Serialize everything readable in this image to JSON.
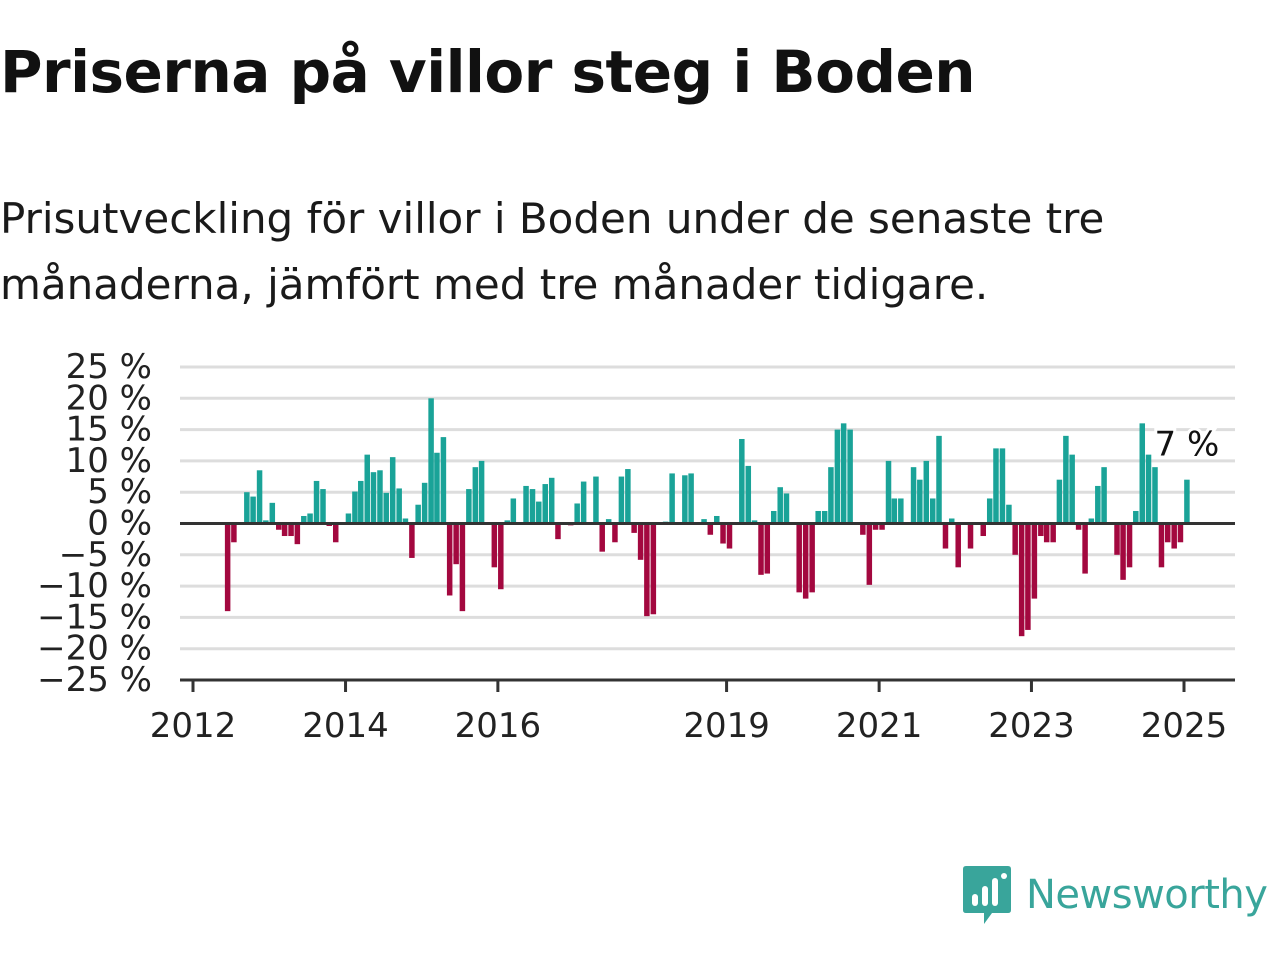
{
  "header": {
    "title": "Priserna på villor steg i Boden",
    "subtitle": "Prisutveckling för villor i Boden under de senaste tre månaderna, jämfört med tre månader tidigare."
  },
  "brand": {
    "name": "Newsworthy",
    "icon": "newsworthy-logo-icon",
    "color": "#39a59b"
  },
  "colors": {
    "positive": "#1aa398",
    "negative": "#a3083f",
    "grid": "#dddddd",
    "axis": "#333333"
  },
  "chart_data": {
    "type": "bar",
    "title": "",
    "xlabel": "",
    "ylabel": "",
    "ylim": [
      -25,
      25
    ],
    "y_ticks": [
      25,
      20,
      15,
      10,
      5,
      0,
      -5,
      -10,
      -15,
      -20,
      -25
    ],
    "y_tick_labels": [
      "25 %",
      "20 %",
      "15 %",
      "10 %",
      "5 %",
      "0 %",
      "−5 %",
      "−10 %",
      "−15 %",
      "−20 %",
      "−25 %"
    ],
    "x_range": [
      "2012-01",
      "2025-07"
    ],
    "x_ticks": [
      "2012",
      "2014",
      "2016",
      "2019",
      "2021",
      "2023",
      "2025"
    ],
    "grid": true,
    "series": [
      {
        "values": [
          [
            "2012-06",
            -14
          ],
          [
            "2012-07",
            -3
          ],
          [
            "2012-09",
            5
          ],
          [
            "2012-10",
            4.3
          ],
          [
            "2012-11",
            8.5
          ],
          [
            "2012-12",
            0.5
          ],
          [
            "2013-01",
            3.3
          ],
          [
            "2013-02",
            -1
          ],
          [
            "2013-03",
            -2
          ],
          [
            "2013-04",
            -2
          ],
          [
            "2013-05",
            -3.3
          ],
          [
            "2013-06",
            1.2
          ],
          [
            "2013-07",
            1.6
          ],
          [
            "2013-08",
            6.8
          ],
          [
            "2013-09",
            5.5
          ],
          [
            "2013-10",
            -0.4
          ],
          [
            "2013-11",
            -3
          ],
          [
            "2014-01",
            1.6
          ],
          [
            "2014-02",
            5.1
          ],
          [
            "2014-03",
            6.8
          ],
          [
            "2014-04",
            11
          ],
          [
            "2014-05",
            8.2
          ],
          [
            "2014-06",
            8.5
          ],
          [
            "2014-07",
            4.9
          ],
          [
            "2014-08",
            10.6
          ],
          [
            "2014-09",
            5.6
          ],
          [
            "2014-10",
            0.8
          ],
          [
            "2014-11",
            -5.5
          ],
          [
            "2014-12",
            3
          ],
          [
            "2015-01",
            6.5
          ],
          [
            "2015-02",
            20
          ],
          [
            "2015-03",
            11.3
          ],
          [
            "2015-04",
            13.8
          ],
          [
            "2015-05",
            -11.5
          ],
          [
            "2015-06",
            -6.5
          ],
          [
            "2015-07",
            -14
          ],
          [
            "2015-08",
            5.5
          ],
          [
            "2015-09",
            9
          ],
          [
            "2015-10",
            10
          ],
          [
            "2015-12",
            -7
          ],
          [
            "2016-01",
            -10.5
          ],
          [
            "2016-02",
            0.5
          ],
          [
            "2016-03",
            4
          ],
          [
            "2016-05",
            6
          ],
          [
            "2016-06",
            5.5
          ],
          [
            "2016-07",
            3.5
          ],
          [
            "2016-08",
            6.3
          ],
          [
            "2016-09",
            7.3
          ],
          [
            "2016-10",
            -2.5
          ],
          [
            "2016-12",
            -0.3
          ],
          [
            "2017-01",
            3.2
          ],
          [
            "2017-02",
            6.7
          ],
          [
            "2017-04",
            7.5
          ],
          [
            "2017-05",
            -4.5
          ],
          [
            "2017-06",
            0.7
          ],
          [
            "2017-07",
            -3
          ],
          [
            "2017-08",
            7.5
          ],
          [
            "2017-09",
            8.7
          ],
          [
            "2017-10",
            -1.5
          ],
          [
            "2017-11",
            -5.8
          ],
          [
            "2017-12",
            -14.8
          ],
          [
            "2018-01",
            -14.5
          ],
          [
            "2018-03",
            0.3
          ],
          [
            "2018-04",
            8
          ],
          [
            "2018-06",
            7.7
          ],
          [
            "2018-07",
            8
          ],
          [
            "2018-09",
            0.7
          ],
          [
            "2018-10",
            -1.8
          ],
          [
            "2018-11",
            1.2
          ],
          [
            "2018-12",
            -3.2
          ],
          [
            "2019-01",
            -4
          ],
          [
            "2019-03",
            13.5
          ],
          [
            "2019-04",
            9.2
          ],
          [
            "2019-05",
            0.5
          ],
          [
            "2019-06",
            -8.2
          ],
          [
            "2019-07",
            -8
          ],
          [
            "2019-08",
            2
          ],
          [
            "2019-09",
            5.8
          ],
          [
            "2019-10",
            4.8
          ],
          [
            "2019-12",
            -11
          ],
          [
            "2020-01",
            -12
          ],
          [
            "2020-02",
            -11
          ],
          [
            "2020-03",
            2
          ],
          [
            "2020-04",
            2
          ],
          [
            "2020-05",
            9
          ],
          [
            "2020-06",
            15
          ],
          [
            "2020-07",
            16
          ],
          [
            "2020-08",
            15
          ],
          [
            "2020-10",
            -1.8
          ],
          [
            "2020-11",
            -9.8
          ],
          [
            "2020-12",
            -1
          ],
          [
            "2021-01",
            -1
          ],
          [
            "2021-02",
            10
          ],
          [
            "2021-03",
            4
          ],
          [
            "2021-04",
            4
          ],
          [
            "2021-06",
            9
          ],
          [
            "2021-07",
            7
          ],
          [
            "2021-08",
            10
          ],
          [
            "2021-09",
            4
          ],
          [
            "2021-10",
            14
          ],
          [
            "2021-11",
            -4
          ],
          [
            "2021-12",
            0.8
          ],
          [
            "2022-01",
            -7
          ],
          [
            "2022-03",
            -4
          ],
          [
            "2022-05",
            -2
          ],
          [
            "2022-06",
            4
          ],
          [
            "2022-07",
            12
          ],
          [
            "2022-08",
            12
          ],
          [
            "2022-09",
            3
          ],
          [
            "2022-10",
            -5
          ],
          [
            "2022-11",
            -18
          ],
          [
            "2022-12",
            -17
          ],
          [
            "2023-01",
            -12
          ],
          [
            "2023-02",
            -2
          ],
          [
            "2023-03",
            -3
          ],
          [
            "2023-04",
            -3
          ],
          [
            "2023-05",
            7
          ],
          [
            "2023-06",
            14
          ],
          [
            "2023-07",
            11
          ],
          [
            "2023-08",
            -1
          ],
          [
            "2023-09",
            -8
          ],
          [
            "2023-10",
            0.8
          ],
          [
            "2023-11",
            6
          ],
          [
            "2023-12",
            9
          ],
          [
            "2024-02",
            -5
          ],
          [
            "2024-03",
            -9
          ],
          [
            "2024-04",
            -7
          ],
          [
            "2024-05",
            2
          ],
          [
            "2024-06",
            16
          ],
          [
            "2024-07",
            11
          ],
          [
            "2024-08",
            9
          ],
          [
            "2024-09",
            -7
          ],
          [
            "2024-10",
            -3
          ],
          [
            "2024-11",
            -4
          ],
          [
            "2024-12",
            -3
          ],
          [
            "2025-01",
            7
          ]
        ]
      }
    ],
    "annotation": {
      "text": "7 %",
      "target": "2025-01"
    }
  }
}
